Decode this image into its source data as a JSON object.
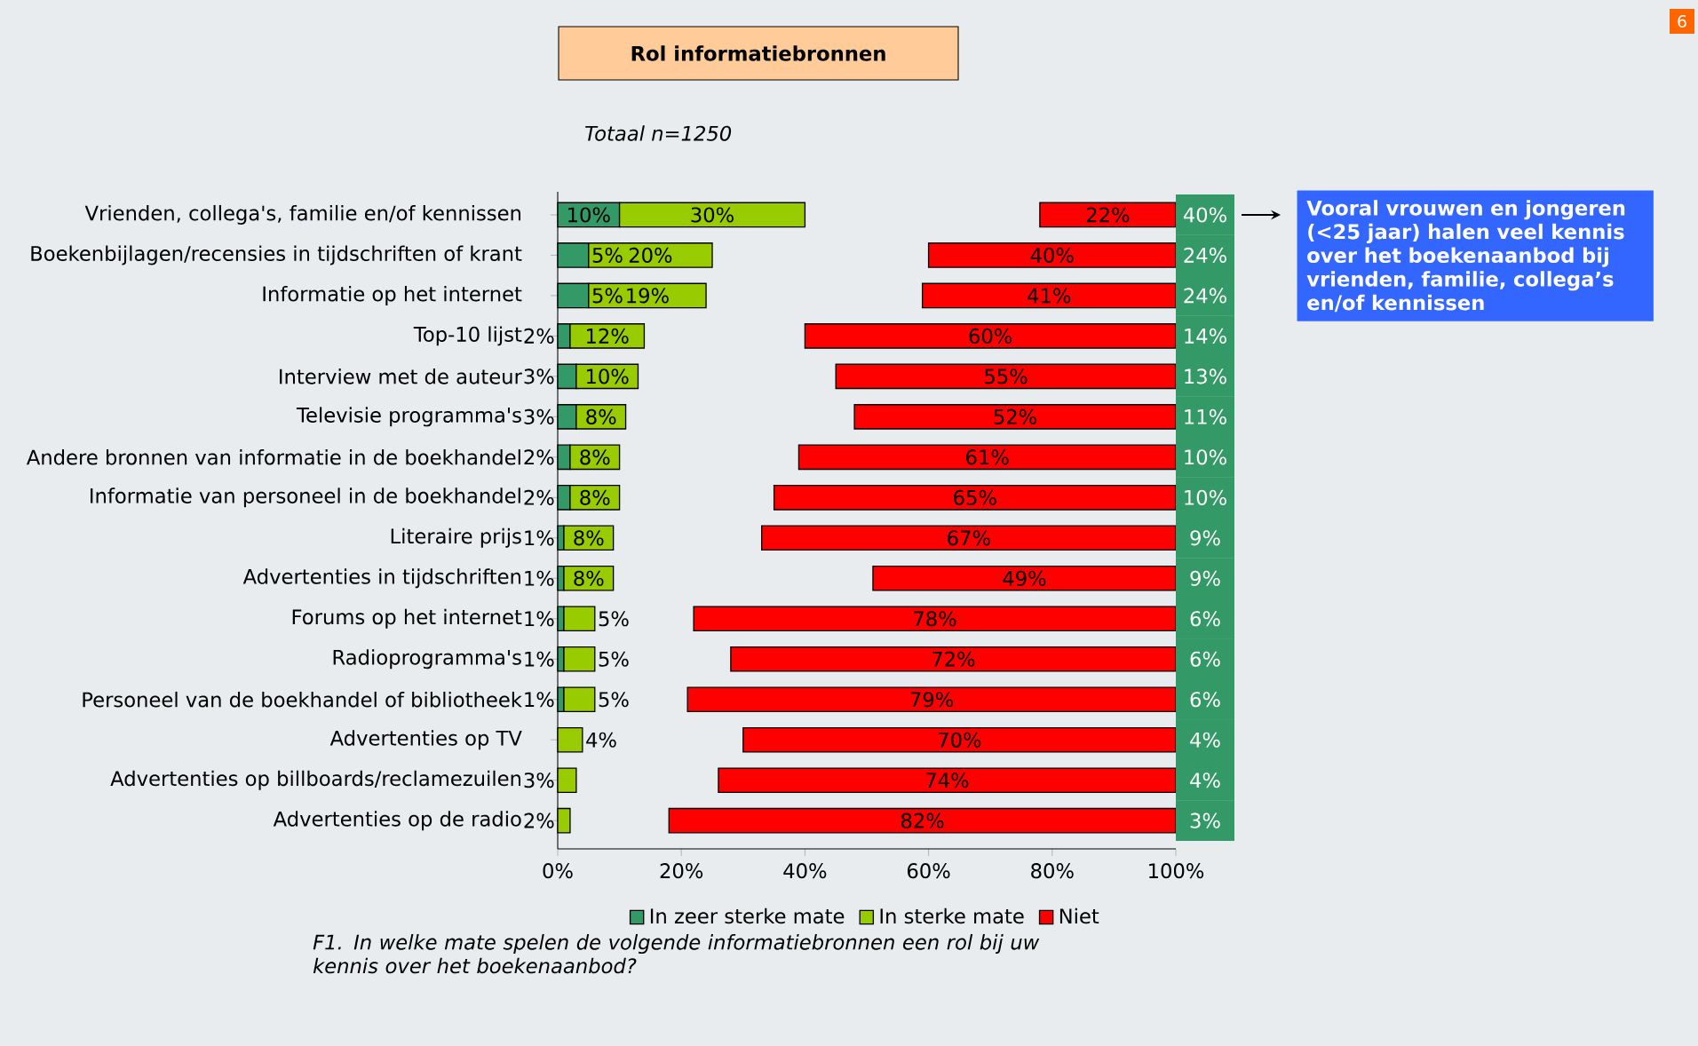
{
  "chart_data": {
    "type": "bar",
    "orientation": "horizontal",
    "title": "Rol informatiebronnen",
    "subtitle": "Totaal n=1250",
    "categories": [
      "Vrienden, collega's, familie en/of kennissen",
      "Boekenbijlagen/recensies in tijdschriften of krant",
      "Informatie op het internet",
      "Top-10 lijst",
      "Interview met de auteur",
      "Televisie programma's",
      "Andere bronnen van informatie in de boekhandel",
      "Informatie van personeel in de boekhandel",
      "Literaire prijs",
      "Advertenties in tijdschriften",
      "Forums op het internet",
      "Radioprogramma's",
      "Personeel van de boekhandel of bibliotheek",
      "Advertenties op TV",
      "Advertenties op billboards/reclamezuilen",
      "Advertenties op de radio"
    ],
    "series": [
      {
        "name": "In zeer sterke mate",
        "color": "#339966",
        "values": [
          10,
          5,
          5,
          2,
          3,
          3,
          2,
          2,
          1,
          1,
          1,
          1,
          1,
          null,
          null,
          null
        ],
        "base": [
          0,
          0,
          0,
          0,
          0,
          0,
          0,
          0,
          0,
          0,
          0,
          0,
          0,
          null,
          null,
          null
        ],
        "value_labels": [
          "10%",
          "5%",
          "5%",
          "2%",
          "3%",
          "3%",
          "2%",
          "2%",
          "1%",
          "1%",
          "1%",
          "1%",
          "1%",
          null,
          null,
          null
        ]
      },
      {
        "name": "In sterke mate",
        "color": "#99cc00",
        "values": [
          30,
          20,
          19,
          12,
          10,
          8,
          8,
          8,
          8,
          8,
          5,
          5,
          5,
          4,
          3,
          2
        ],
        "base": [
          10,
          5,
          5,
          2,
          3,
          3,
          2,
          2,
          1,
          1,
          1,
          1,
          1,
          0,
          0,
          0
        ],
        "value_labels": [
          "30%",
          "20%",
          "19%",
          "12%",
          "10%",
          "8%",
          "8%",
          "8%",
          "8%",
          "8%",
          "5%",
          "5%",
          "5%",
          "4%",
          "3%",
          "2%"
        ]
      },
      {
        "name": "Niet",
        "color": "#ff0000",
        "values": [
          22,
          40,
          41,
          60,
          55,
          52,
          61,
          65,
          67,
          49,
          78,
          72,
          79,
          70,
          74,
          82
        ],
        "base": [
          78,
          60,
          59,
          40,
          45,
          48,
          39,
          35,
          33,
          51,
          22,
          28,
          21,
          30,
          26,
          18
        ],
        "value_labels": [
          "22%",
          "40%",
          "41%",
          "60%",
          "55%",
          "52%",
          "61%",
          "65%",
          "67%",
          "49%",
          "78%",
          "72%",
          "79%",
          "70%",
          "74%",
          "82%"
        ]
      }
    ],
    "xlim": [
      0,
      100
    ],
    "xticks": [
      {
        "value": 0,
        "label": "0%"
      },
      {
        "value": 20,
        "label": "20%"
      },
      {
        "value": 40,
        "label": "40%"
      },
      {
        "value": 60,
        "label": "60%"
      },
      {
        "value": 80,
        "label": "80%"
      },
      {
        "value": 100,
        "label": "100%"
      }
    ],
    "legend": "bottom",
    "annotations": [
      "Vooral vrouwen en jongeren (<25 jaar) halen veel kennis over het boekenaanbod bij vrienden, familie, collega’s en/of kennissen",
      "F1. In welke mate spelen de volgende informatiebronnen een rol bij uw kennis over het boekenaanbod?",
      "6",
      {
        "text": "40%",
        "y": "Vrienden, collega's, familie en/of kennissen"
      },
      {
        "text": "24%",
        "y": "Boekenbijlagen/recensies in tijdschriften of krant"
      },
      {
        "text": "24%",
        "y": "Informatie op het internet"
      },
      {
        "text": "14%",
        "y": "Top-10 lijst"
      },
      {
        "text": "13%",
        "y": "Interview met de auteur"
      },
      {
        "text": "11%",
        "y": "Televisie programma's"
      },
      {
        "text": "10%",
        "y": "Andere bronnen van informatie in de boekhandel"
      },
      {
        "text": "10%",
        "y": "Informatie van personeel in de boekhandel"
      },
      {
        "text": "9%",
        "y": "Literaire prijs"
      },
      {
        "text": "9%",
        "y": "Advertenties in tijdschriften"
      },
      {
        "text": "6%",
        "y": "Forums op het internet"
      },
      {
        "text": "6%",
        "y": "Radioprogramma's"
      },
      {
        "text": "6%",
        "y": "Personeel van de boekhandel of bibliotheek"
      },
      {
        "text": "4%",
        "y": "Advertenties op TV"
      },
      {
        "text": "4%",
        "y": "Advertenties op billboards/reclamezuilen"
      },
      {
        "text": "3%",
        "y": "Advertenties op de radio"
      }
    ]
  }
}
